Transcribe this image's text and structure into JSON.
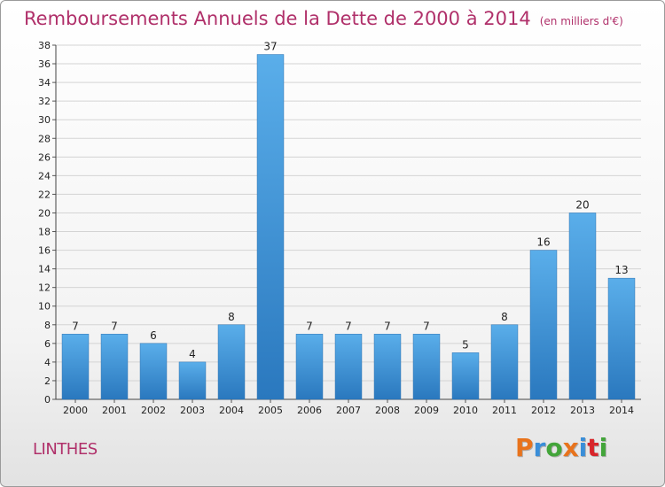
{
  "header": {
    "title": "Remboursements Annuels de la Dette de 2000 à 2014",
    "subtitle": "(en milliers d'€)"
  },
  "footer": {
    "place": "LINTHES",
    "brand": [
      "P",
      "r",
      "o",
      "x",
      "i",
      "t",
      "i"
    ]
  },
  "colors": {
    "title": "#b0306a",
    "bar_top": "#5aaeea",
    "bar_bottom": "#2a78be",
    "brand": [
      "#e8731c",
      "#3a8ed8",
      "#43a53a",
      "#e8731c",
      "#3a8ed8",
      "#d8252a",
      "#43a53a"
    ]
  },
  "chart_data": {
    "type": "bar",
    "categories": [
      "2000",
      "2001",
      "2002",
      "2003",
      "2004",
      "2005",
      "2006",
      "2007",
      "2008",
      "2009",
      "2010",
      "2011",
      "2012",
      "2013",
      "2014"
    ],
    "values": [
      7,
      7,
      6,
      4,
      8,
      37,
      7,
      7,
      7,
      7,
      5,
      8,
      16,
      20,
      13
    ],
    "title": "Remboursements Annuels de la Dette de 2000 à 2014",
    "subtitle": "(en milliers d'€)",
    "ylim": [
      0,
      38
    ],
    "yticks": [
      0,
      2,
      4,
      6,
      8,
      10,
      12,
      14,
      16,
      18,
      20,
      22,
      24,
      26,
      28,
      30,
      32,
      34,
      36,
      38
    ],
    "grid": true,
    "data_labels": true
  }
}
